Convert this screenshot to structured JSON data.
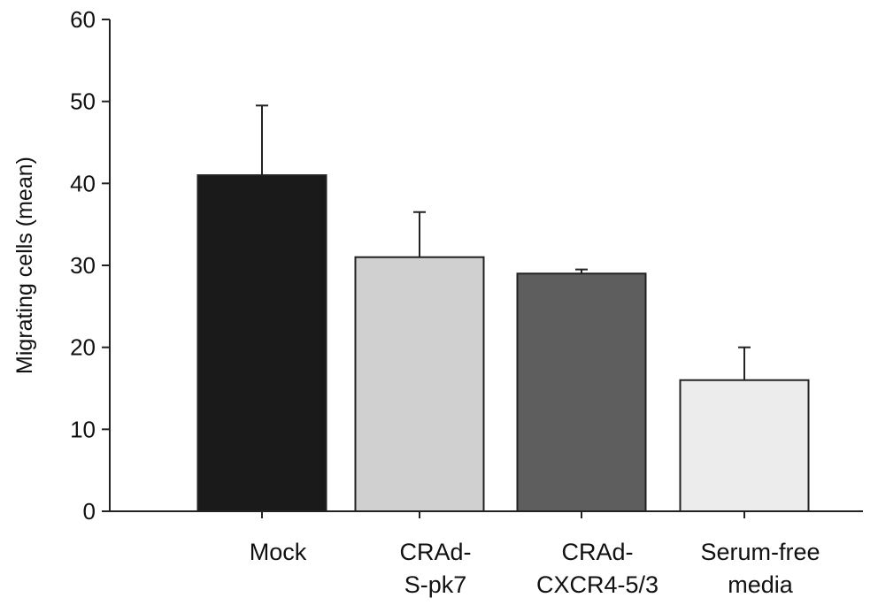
{
  "chart_data": {
    "type": "bar",
    "categories": [
      [
        "Mock"
      ],
      [
        "CRAd-",
        "S-pk7"
      ],
      [
        "CRAd-",
        "CXCR4-5/3"
      ],
      [
        "Serum-free",
        "media"
      ]
    ],
    "values": [
      41,
      31,
      29,
      16
    ],
    "error_upper": [
      49.5,
      36.5,
      29.5,
      20
    ],
    "bar_colors": [
      "#1a1a1a",
      "#d0d0d0",
      "#5e5e5e",
      "#ececec"
    ],
    "ylabel": "Migrating cells (mean)",
    "ylim": [
      0,
      60
    ],
    "yticks": [
      0,
      10,
      20,
      30,
      40,
      50,
      60
    ],
    "grid": false,
    "legend": "none"
  }
}
